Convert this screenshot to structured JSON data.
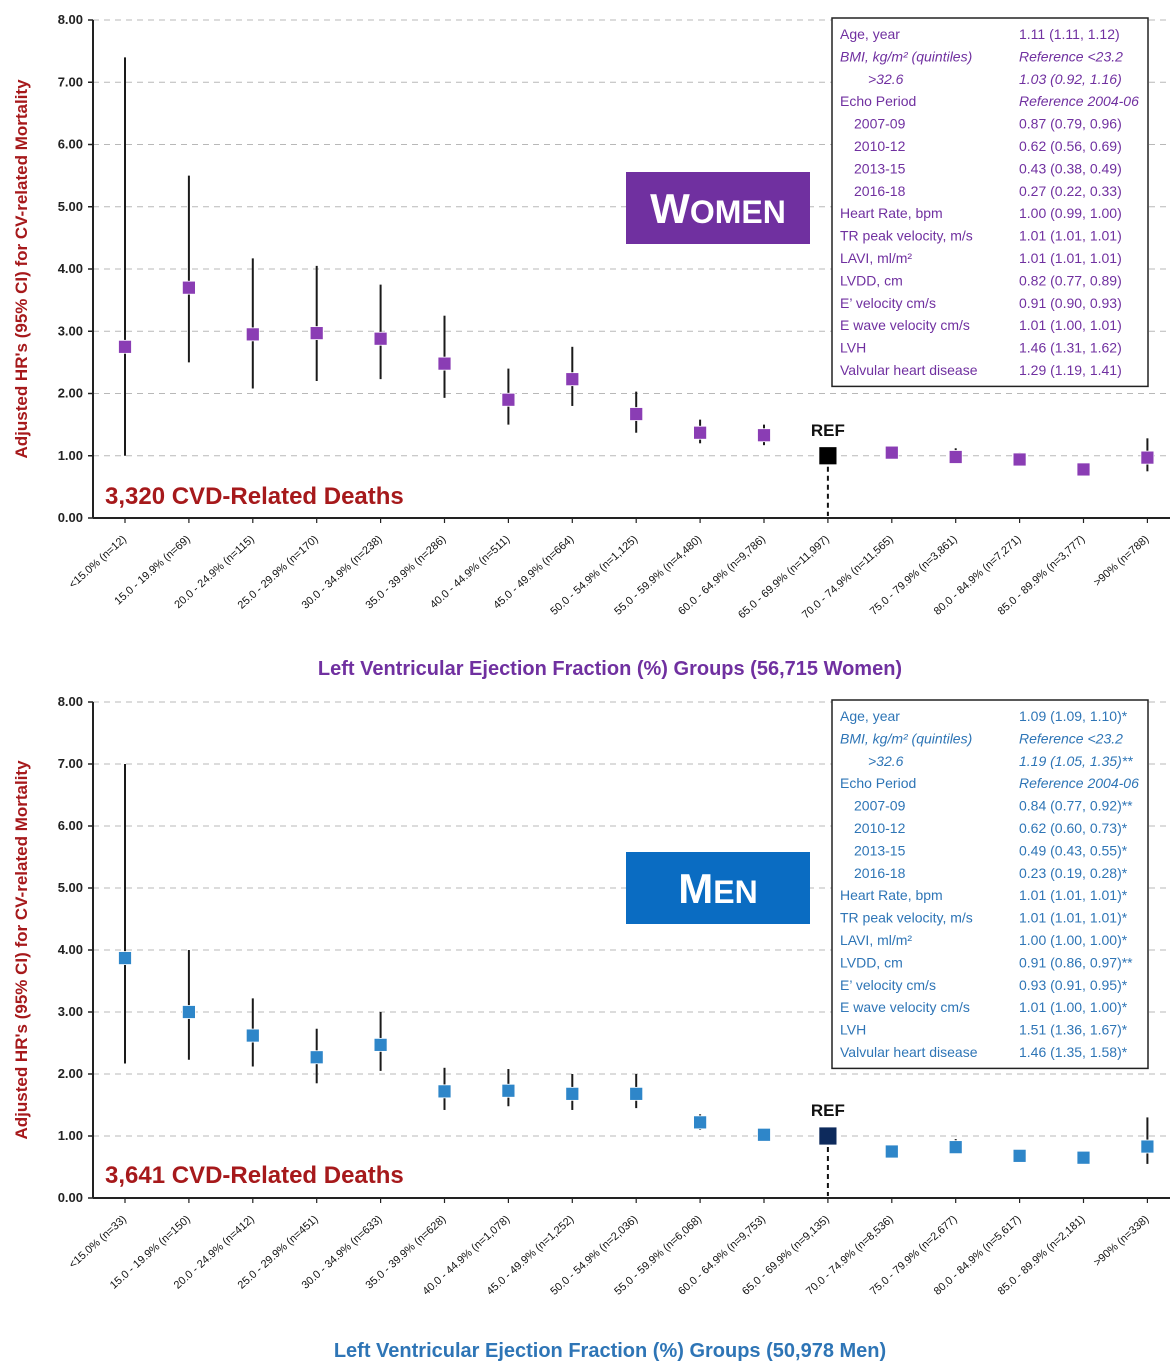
{
  "chart_data": [
    {
      "type": "scatter",
      "panel": "women",
      "sex_label_first": "W",
      "sex_label_rest": "OMEN",
      "deaths_label": "3,320 CVD-Related Deaths",
      "ylabel": "Adjusted HR's (95% CI) for CV-related Mortality",
      "xlabel": "Left Ventricular Ejection Fraction (%) Groups (56,715 Women)",
      "ylim": [
        0,
        8
      ],
      "yticks": [
        "0.00",
        "1.00",
        "2.00",
        "3.00",
        "4.00",
        "5.00",
        "6.00",
        "7.00",
        "8.00"
      ],
      "grid": true,
      "ref_label": "REF",
      "ref_index": 11,
      "marker_color": "#8a3db4",
      "ref_color": "#000000",
      "title_bg": "#7030a0",
      "xlabel_color": "#7030a0",
      "table_color": "#7030a0",
      "categories": [
        "<15.0% (n=12)",
        "15.0 - 19.9% (n=69)",
        "20.0 - 24.9% (n=115)",
        "25.0 - 29.9% (n=170)",
        "30.0 - 34.9% (n=238)",
        "35.0 - 39.9% (n=286)",
        "40.0 - 44.9% (n=511)",
        "45.0 - 49.9% (n=664)",
        "50.0 - 54.9% (n=1,125)",
        "55.0 - 59.9% (n=4,480)",
        "60.0 - 64.9% (n=9,786)",
        "65.0 - 69.9% (n=11,997)",
        "70.0 - 74.9% (n=11,565)",
        "75.0 - 79.9% (n=3,861)",
        "80.0 - 84.9% (n=7,271)",
        "85.0 - 89.9% (n=3,777)",
        ">90% (n=788)"
      ],
      "hr": [
        2.75,
        3.7,
        2.95,
        2.97,
        2.88,
        2.48,
        1.9,
        2.23,
        1.67,
        1.37,
        1.33,
        1.0,
        1.05,
        0.98,
        0.94,
        0.78,
        0.97
      ],
      "low": [
        1.0,
        2.5,
        2.08,
        2.2,
        2.23,
        1.93,
        1.5,
        1.8,
        1.37,
        1.2,
        1.17,
        1.0,
        0.95,
        0.9,
        0.85,
        0.7,
        0.75
      ],
      "high": [
        7.4,
        5.5,
        4.17,
        4.05,
        3.75,
        3.25,
        2.4,
        2.75,
        2.03,
        1.58,
        1.5,
        1.0,
        1.15,
        1.12,
        1.05,
        0.88,
        1.28
      ],
      "table": [
        {
          "name": "Age, year",
          "value": "1.11 (1.11, 1.12)",
          "italic": false,
          "indent": 0
        },
        {
          "name": "BMI, kg/m² (quintiles)",
          "value": "Reference <23.2",
          "italic": true,
          "indent": 0
        },
        {
          "name": ">32.6",
          "value": "1.03 (0.92, 1.16)",
          "italic": true,
          "indent": 2
        },
        {
          "name": "Echo Period",
          "value": "Reference 2004-06",
          "italic": false,
          "valItalic": true,
          "indent": 0
        },
        {
          "name": "2007-09",
          "value": "0.87 (0.79, 0.96)",
          "italic": false,
          "indent": 1
        },
        {
          "name": "2010-12",
          "value": "0.62 (0.56, 0.69)",
          "italic": false,
          "indent": 1
        },
        {
          "name": "2013-15",
          "value": "0.43 (0.38, 0.49)",
          "italic": false,
          "indent": 1
        },
        {
          "name": "2016-18",
          "value": "0.27 (0.22, 0.33)",
          "italic": false,
          "indent": 1
        },
        {
          "name": "Heart Rate, bpm",
          "value": "1.00 (0.99, 1.00)",
          "italic": false,
          "indent": 0
        },
        {
          "name": "TR peak velocity, m/s",
          "value": "1.01 (1.01, 1.01)",
          "italic": false,
          "indent": 0
        },
        {
          "name": "LAVI, ml/m²",
          "value": "1.01 (1.01, 1.01)",
          "italic": false,
          "indent": 0
        },
        {
          "name": "LVDD, cm",
          "value": "0.82 (0.77, 0.89)",
          "italic": false,
          "indent": 0
        },
        {
          "name": "E’ velocity cm/s",
          "value": "0.91 (0.90, 0.93)",
          "italic": false,
          "indent": 0
        },
        {
          "name": "E wave velocity cm/s",
          "value": "1.01 (1.00, 1.01)",
          "italic": false,
          "indent": 0
        },
        {
          "name": "LVH",
          "value": "1.46 (1.31, 1.62)",
          "italic": false,
          "indent": 0
        },
        {
          "name": "Valvular heart disease",
          "value": "1.29 (1.19, 1.41)",
          "italic": false,
          "indent": 0
        }
      ]
    },
    {
      "type": "scatter",
      "panel": "men",
      "sex_label_first": "M",
      "sex_label_rest": "EN",
      "deaths_label": "3,641 CVD-Related Deaths",
      "ylabel": "Adjusted HR's (95% CI) for CV-related Mortality",
      "xlabel": "Left Ventricular Ejection Fraction (%) Groups (50,978 Men)",
      "ylim": [
        0,
        8
      ],
      "yticks": [
        "0.00",
        "1.00",
        "2.00",
        "3.00",
        "4.00",
        "5.00",
        "6.00",
        "7.00",
        "8.00"
      ],
      "grid": true,
      "ref_label": "REF",
      "ref_index": 11,
      "marker_color": "#2e86c9",
      "ref_color": "#0d2a5c",
      "title_bg": "#0a6cc2",
      "xlabel_color": "#2e75b6",
      "table_color": "#2e75b6",
      "categories": [
        "<15.0% (n=33)",
        "15.0 - 19.9% (n=150)",
        "20.0 - 24.9% (n=412)",
        "25.0 - 29.9% (n=451)",
        "30.0 - 34.9% (n=633)",
        "35.0 - 39.9% (n=628)",
        "40.0 - 44.9% (n=1,078)",
        "45.0 - 49.9% (n=1,252)",
        "50.0 - 54.9% (n=2,036)",
        "55.0 - 59.9% (n=6,068)",
        "60.0 - 64.9% (n=9,753)",
        "65.0 - 69.9% (n=9,135)",
        "70.0 - 74.9% (n=8,536)",
        "75.0 - 79.9% (n=2,677)",
        "80.0 - 84.9% (n=5,617)",
        "85.0 - 89.9% (n=2,181)",
        ">90% (n=338)"
      ],
      "hr": [
        3.87,
        3.0,
        2.62,
        2.27,
        2.47,
        1.72,
        1.73,
        1.68,
        1.68,
        1.22,
        1.02,
        1.0,
        0.75,
        0.82,
        0.68,
        0.65,
        0.83
      ],
      "low": [
        2.17,
        2.23,
        2.12,
        1.85,
        2.05,
        1.42,
        1.48,
        1.42,
        1.45,
        1.1,
        0.95,
        1.0,
        0.7,
        0.72,
        0.62,
        0.58,
        0.55
      ],
      "high": [
        7.0,
        4.0,
        3.22,
        2.73,
        3.0,
        2.1,
        2.08,
        2.0,
        2.0,
        1.35,
        1.1,
        1.0,
        0.82,
        0.95,
        0.75,
        0.73,
        1.3
      ],
      "table": [
        {
          "name": "Age, year",
          "value": "1.09 (1.09, 1.10)*",
          "italic": false,
          "indent": 0
        },
        {
          "name": "BMI, kg/m² (quintiles)",
          "value": "Reference <23.2",
          "italic": true,
          "indent": 0
        },
        {
          "name": ">32.6",
          "value": "1.19 (1.05, 1.35)**",
          "italic": true,
          "indent": 2
        },
        {
          "name": "Echo Period",
          "value": "Reference 2004-06",
          "italic": false,
          "valItalic": true,
          "indent": 0
        },
        {
          "name": "2007-09",
          "value": "0.84 (0.77, 0.92)**",
          "italic": false,
          "indent": 1
        },
        {
          "name": "2010-12",
          "value": "0.62 (0.60, 0.73)*",
          "italic": false,
          "indent": 1
        },
        {
          "name": "2013-15",
          "value": "0.49 (0.43, 0.55)*",
          "italic": false,
          "indent": 1
        },
        {
          "name": "2016-18",
          "value": "0.23 (0.19, 0.28)*",
          "italic": false,
          "indent": 1
        },
        {
          "name": "Heart Rate, bpm",
          "value": "1.01 (1.01, 1.01)*",
          "italic": false,
          "indent": 0
        },
        {
          "name": "TR peak velocity, m/s",
          "value": "1.01 (1.01, 1.01)*",
          "italic": false,
          "indent": 0
        },
        {
          "name": "LAVI, ml/m²",
          "value": "1.00 (1.00, 1.00)*",
          "italic": false,
          "indent": 0
        },
        {
          "name": "LVDD, cm",
          "value": "0.91 (0.86, 0.97)**",
          "italic": false,
          "indent": 0
        },
        {
          "name": "E’ velocity cm/s",
          "value": "0.93 (0.91, 0.95)*",
          "italic": false,
          "indent": 0
        },
        {
          "name": "E wave velocity cm/s",
          "value": "1.01 (1.00, 1.00)*",
          "italic": false,
          "indent": 0
        },
        {
          "name": "LVH",
          "value": "1.51 (1.36, 1.67)*",
          "italic": false,
          "indent": 0
        },
        {
          "name": "Valvular heart disease",
          "value": "1.46 (1.35, 1.58)*",
          "italic": false,
          "indent": 0
        }
      ]
    }
  ]
}
